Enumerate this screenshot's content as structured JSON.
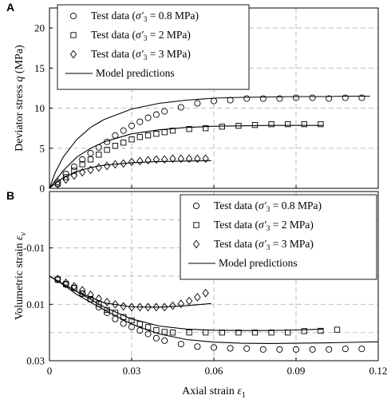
{
  "chart_data": [
    {
      "panel": "A",
      "type": "scatter",
      "ylabel": "Deviator stress q (MPa)",
      "xlabel": "",
      "xlim": [
        0,
        0.12
      ],
      "ylim": [
        0,
        22.5
      ],
      "xticks": [
        0,
        0.03,
        0.06,
        0.09,
        0.12
      ],
      "xtick_labels": [
        "",
        "",
        "",
        "",
        ""
      ],
      "yticks": [
        0,
        5,
        10,
        15,
        20
      ],
      "ytick_labels": [
        "0",
        "5",
        "10",
        "15",
        "20"
      ],
      "grid": true,
      "legend_position": "top-left",
      "series": [
        {
          "name": "Test data (σ'3 = 0.8 MPa)",
          "kind": "markers",
          "marker": "circle",
          "x": [
            0.003,
            0.006,
            0.009,
            0.012,
            0.015,
            0.018,
            0.021,
            0.024,
            0.027,
            0.03,
            0.033,
            0.036,
            0.039,
            0.042,
            0.048,
            0.054,
            0.06,
            0.066,
            0.072,
            0.078,
            0.084,
            0.09,
            0.096,
            0.102,
            0.108,
            0.114
          ],
          "y": [
            0.8,
            1.8,
            2.7,
            3.6,
            4.4,
            5.1,
            5.8,
            6.6,
            7.2,
            7.8,
            8.3,
            8.8,
            9.2,
            9.6,
            10.1,
            10.6,
            10.9,
            11.0,
            11.2,
            11.2,
            11.2,
            11.3,
            11.3,
            11.2,
            11.3,
            11.3
          ]
        },
        {
          "name": "Test data (σ'3 = 2 MPa)",
          "kind": "markers",
          "marker": "square",
          "x": [
            0.003,
            0.006,
            0.009,
            0.012,
            0.015,
            0.018,
            0.021,
            0.024,
            0.027,
            0.03,
            0.033,
            0.036,
            0.039,
            0.042,
            0.045,
            0.051,
            0.057,
            0.063,
            0.069,
            0.075,
            0.081,
            0.087,
            0.093,
            0.099
          ],
          "y": [
            0.6,
            1.4,
            2.2,
            3.0,
            3.6,
            4.2,
            4.8,
            5.3,
            5.7,
            6.1,
            6.4,
            6.6,
            6.8,
            7.0,
            7.2,
            7.4,
            7.5,
            7.7,
            7.8,
            7.9,
            8.0,
            8.0,
            8.0,
            8.0
          ]
        },
        {
          "name": "Test data (σ'3 = 3 MPa)",
          "kind": "markers",
          "marker": "diamond",
          "x": [
            0.003,
            0.006,
            0.009,
            0.012,
            0.015,
            0.018,
            0.021,
            0.024,
            0.027,
            0.03,
            0.033,
            0.036,
            0.039,
            0.042,
            0.045,
            0.048,
            0.051,
            0.054,
            0.057
          ],
          "y": [
            0.5,
            1.1,
            1.6,
            2.0,
            2.3,
            2.6,
            2.8,
            3.0,
            3.1,
            3.3,
            3.4,
            3.5,
            3.6,
            3.6,
            3.7,
            3.7,
            3.7,
            3.7,
            3.7
          ]
        },
        {
          "name": "Model predictions",
          "kind": "line",
          "lines": [
            {
              "x": [
                0,
                0.002,
                0.005,
                0.01,
                0.015,
                0.02,
                0.03,
                0.04,
                0.05,
                0.06,
                0.07,
                0.08,
                0.09,
                0.1,
                0.11,
                0.117
              ],
              "y": [
                0,
                1.9,
                3.9,
                6.1,
                7.6,
                8.6,
                9.9,
                10.6,
                11.0,
                11.25,
                11.35,
                11.4,
                11.45,
                11.45,
                11.5,
                11.5
              ]
            },
            {
              "x": [
                0,
                0.002,
                0.005,
                0.01,
                0.015,
                0.02,
                0.03,
                0.04,
                0.05,
                0.06,
                0.07,
                0.08,
                0.09,
                0.1
              ],
              "y": [
                0,
                0.9,
                2.2,
                3.9,
                5.0,
                5.8,
                6.8,
                7.3,
                7.6,
                7.75,
                7.8,
                7.85,
                7.85,
                7.85
              ]
            },
            {
              "x": [
                0,
                0.002,
                0.005,
                0.01,
                0.015,
                0.02,
                0.03,
                0.04,
                0.05,
                0.059
              ],
              "y": [
                0,
                0.6,
                1.3,
                2.1,
                2.6,
                2.9,
                3.2,
                3.35,
                3.4,
                3.45
              ]
            }
          ]
        }
      ],
      "legend": [
        {
          "marker": "circle",
          "label": "Test data (σ'3 = 0.8 MPa)"
        },
        {
          "marker": "square",
          "label": "Test data (σ'3 = 2 MPa)"
        },
        {
          "marker": "diamond",
          "label": "Test data (σ'3 = 3 MPa)"
        },
        {
          "marker": "line",
          "label": "Model predictions"
        }
      ]
    },
    {
      "panel": "B",
      "type": "scatter",
      "ylabel": "Volumetric strain εv",
      "xlabel": "Axial strain ε1",
      "xlim": [
        0,
        0.12
      ],
      "ylim": [
        -0.03,
        0.03
      ],
      "y_inverted": true,
      "xticks": [
        0,
        0.03,
        0.06,
        0.09,
        0.12
      ],
      "xtick_labels": [
        "0",
        "0.03",
        "0.06",
        "0.09",
        "0.12"
      ],
      "yticks": [
        -0.01,
        0.01,
        0.03
      ],
      "ytick_labels": [
        "-0.01",
        "0.01",
        "0.03"
      ],
      "grid": true,
      "legend_position": "top-right",
      "series": [
        {
          "name": "Test data (σ'3 = 0.8 MPa)",
          "kind": "markers",
          "marker": "circle",
          "x": [
            0.003,
            0.006,
            0.009,
            0.012,
            0.015,
            0.018,
            0.021,
            0.024,
            0.027,
            0.03,
            0.033,
            0.036,
            0.039,
            0.042,
            0.048,
            0.054,
            0.06,
            0.066,
            0.072,
            0.078,
            0.084,
            0.09,
            0.096,
            0.102,
            0.108,
            0.114
          ],
          "y": [
            0.0013,
            0.003,
            0.0042,
            0.0062,
            0.0082,
            0.011,
            0.013,
            0.0152,
            0.0168,
            0.018,
            0.0193,
            0.0205,
            0.022,
            0.0229,
            0.0241,
            0.025,
            0.0253,
            0.0256,
            0.0257,
            0.026,
            0.026,
            0.026,
            0.026,
            0.026,
            0.0258,
            0.0258
          ]
        },
        {
          "name": "Test data (σ'3 = 2 MPa)",
          "kind": "markers",
          "marker": "square",
          "x": [
            0.003,
            0.006,
            0.009,
            0.012,
            0.015,
            0.018,
            0.021,
            0.024,
            0.027,
            0.03,
            0.033,
            0.036,
            0.039,
            0.042,
            0.045,
            0.051,
            0.057,
            0.063,
            0.069,
            0.075,
            0.081,
            0.087,
            0.093,
            0.099,
            0.105
          ],
          "y": [
            0.0012,
            0.0028,
            0.0042,
            0.0062,
            0.0082,
            0.0098,
            0.012,
            0.013,
            0.0145,
            0.0157,
            0.017,
            0.0181,
            0.0192,
            0.0198,
            0.02,
            0.02,
            0.02,
            0.02,
            0.02,
            0.02,
            0.02,
            0.02,
            0.0195,
            0.0194,
            0.019
          ]
        },
        {
          "name": "Test data (σ'3 = 3 MPa)",
          "kind": "markers",
          "marker": "diamond",
          "x": [
            0.003,
            0.006,
            0.009,
            0.012,
            0.015,
            0.018,
            0.021,
            0.024,
            0.027,
            0.03,
            0.033,
            0.036,
            0.039,
            0.042,
            0.045,
            0.048,
            0.051,
            0.054,
            0.057
          ],
          "y": [
            0.001,
            0.0024,
            0.0036,
            0.005,
            0.0066,
            0.008,
            0.0092,
            0.01,
            0.0107,
            0.011,
            0.011,
            0.011,
            0.011,
            0.011,
            0.0105,
            0.0098,
            0.0088,
            0.0075,
            0.006
          ]
        },
        {
          "name": "Model predictions",
          "kind": "line",
          "lines": [
            {
              "x": [
                0,
                0.005,
                0.01,
                0.02,
                0.03,
                0.04,
                0.05,
                0.06,
                0.07,
                0.08,
                0.09,
                0.1,
                0.11,
                0.12
              ],
              "y": [
                0.0,
                0.003,
                0.0065,
                0.012,
                0.017,
                0.0205,
                0.0225,
                0.0234,
                0.0238,
                0.0239,
                0.0238,
                0.0237,
                0.0235,
                0.0233
              ]
            },
            {
              "x": [
                0,
                0.005,
                0.01,
                0.02,
                0.03,
                0.04,
                0.05,
                0.06,
                0.07,
                0.08,
                0.09,
                0.1
              ],
              "y": [
                0.0,
                0.0028,
                0.0055,
                0.011,
                0.0152,
                0.0177,
                0.0188,
                0.0192,
                0.0193,
                0.0193,
                0.0191,
                0.0188
              ]
            },
            {
              "x": [
                0,
                0.005,
                0.01,
                0.02,
                0.03,
                0.04,
                0.05,
                0.059
              ],
              "y": [
                0.0,
                0.0028,
                0.0055,
                0.0095,
                0.0109,
                0.011,
                0.0105,
                0.0097
              ]
            }
          ]
        }
      ],
      "legend": [
        {
          "marker": "circle",
          "label": "Test data (σ'3 = 0.8 MPa)"
        },
        {
          "marker": "square",
          "label": "Test data (σ'3 = 2 MPa)"
        },
        {
          "marker": "diamond",
          "label": "Test data (σ'3 = 3 MPa)"
        },
        {
          "marker": "line",
          "label": "Model predictions"
        }
      ]
    }
  ]
}
